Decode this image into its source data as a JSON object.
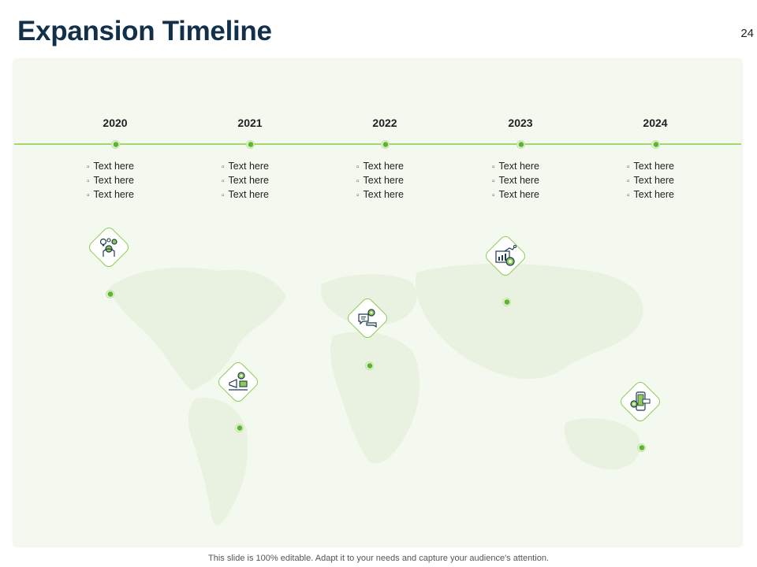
{
  "slide": {
    "title": "Expansion Timeline",
    "page_number": "24",
    "footer": "This slide is 100% editable. Adapt it to your needs and capture your audience's attention."
  },
  "timeline": {
    "items": [
      {
        "year": "2020",
        "bullets": [
          "Text here",
          "Text here",
          "Text here"
        ],
        "icon": "idea-gear-person-icon"
      },
      {
        "year": "2021",
        "bullets": [
          "Text here",
          "Text here",
          "Text here"
        ],
        "icon": "megaphone-gear-icon"
      },
      {
        "year": "2022",
        "bullets": [
          "Text here",
          "Text here",
          "Text here"
        ],
        "icon": "chat-gear-icon"
      },
      {
        "year": "2023",
        "bullets": [
          "Text here",
          "Text here",
          "Text here"
        ],
        "icon": "report-growth-icon"
      },
      {
        "year": "2024",
        "bullets": [
          "Text here",
          "Text here",
          "Text here"
        ],
        "icon": "mobile-settings-icon"
      }
    ]
  },
  "colors": {
    "accent": "#8ccb55",
    "line": "#a5d66e",
    "title": "#12304a",
    "panel": "#f4f9ef"
  }
}
